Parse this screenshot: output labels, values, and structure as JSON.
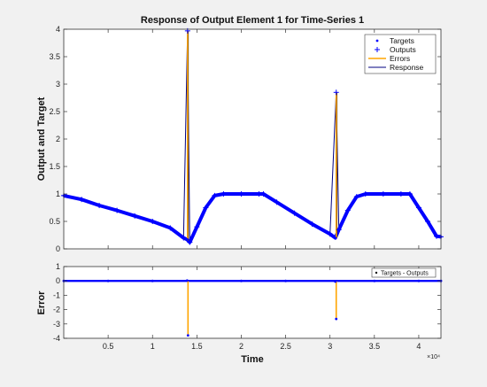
{
  "chart_data": [
    {
      "type": "line",
      "title": "Response of Output Element 1 for Time-Series 1",
      "xlabel": "",
      "ylabel": "Output and Target",
      "xlim": [
        0,
        42500
      ],
      "ylim": [
        0,
        4
      ],
      "yticks": [
        0,
        0.5,
        1,
        1.5,
        2,
        2.5,
        3,
        3.5,
        4
      ],
      "ytick_labels": [
        "0",
        "0.5",
        "1",
        "1.5",
        "2",
        "2.5",
        "3",
        "3.5",
        "4"
      ],
      "grid": false,
      "legend": {
        "placement": "top-right",
        "entries": [
          {
            "label": "Targets",
            "marker": "dot",
            "color": "#0000ff"
          },
          {
            "label": "Outputs",
            "marker": "plus",
            "color": "#0000ff"
          },
          {
            "label": "Errors",
            "marker": "line",
            "color": "#ffa500"
          },
          {
            "label": "Response",
            "marker": "line",
            "color": "#000080"
          }
        ]
      },
      "series": [
        {
          "name": "Targets",
          "color": "#0000ff",
          "x": [
            0,
            2000,
            4000,
            6000,
            8000,
            10000,
            12000,
            13500,
            13900,
            14200,
            15000,
            16000,
            17000,
            18000,
            20000,
            22000,
            22500,
            24000,
            26000,
            28000,
            30000,
            30600,
            31000,
            32000,
            33000,
            34000,
            36000,
            38000,
            39000,
            40000,
            41000,
            42000,
            42500
          ],
          "values": [
            0.97,
            0.9,
            0.79,
            0.7,
            0.6,
            0.5,
            0.38,
            0.2,
            0.17,
            0.12,
            0.4,
            0.75,
            0.97,
            1.0,
            1.0,
            1.0,
            1.0,
            0.85,
            0.65,
            0.45,
            0.27,
            0.2,
            0.35,
            0.7,
            0.95,
            1.0,
            1.0,
            1.0,
            1.0,
            0.75,
            0.5,
            0.23,
            0.22
          ]
        },
        {
          "name": "Outputs",
          "color": "#0000ff",
          "x": [
            0,
            2000,
            4000,
            6000,
            8000,
            10000,
            12000,
            13500,
            13950,
            14200,
            15000,
            16000,
            17000,
            18000,
            20000,
            22000,
            22500,
            24000,
            26000,
            28000,
            30000,
            30700,
            31000,
            32000,
            33000,
            34000,
            36000,
            38000,
            39000,
            40000,
            41000,
            42000,
            42500
          ],
          "values": [
            0.97,
            0.9,
            0.79,
            0.7,
            0.6,
            0.5,
            0.38,
            0.2,
            3.97,
            0.12,
            0.4,
            0.75,
            0.97,
            1.0,
            1.0,
            1.0,
            1.0,
            0.85,
            0.65,
            0.45,
            0.27,
            2.85,
            0.35,
            0.7,
            0.95,
            1.0,
            1.0,
            1.0,
            1.0,
            0.75,
            0.5,
            0.23,
            0.22
          ]
        },
        {
          "name": "Errors",
          "color": "#ffa500",
          "segments": [
            {
              "x": 13950,
              "y_from": 0.15,
              "y_to": 3.97
            },
            {
              "x": 30700,
              "y_from": 0.2,
              "y_to": 2.85
            }
          ]
        }
      ]
    },
    {
      "type": "line",
      "title": "",
      "xlabel": "Time",
      "ylabel": "Error",
      "x_exponent_label": "×10⁴",
      "xlim": [
        0,
        42500
      ],
      "ylim": [
        -4,
        1
      ],
      "xticks": [
        5000,
        10000,
        15000,
        20000,
        25000,
        30000,
        35000,
        40000
      ],
      "xtick_labels": [
        "0.5",
        "1",
        "1.5",
        "2",
        "2.5",
        "3",
        "3.5",
        "4"
      ],
      "yticks": [
        -4,
        -3,
        -2,
        -1,
        0,
        1
      ],
      "ytick_labels": [
        "-4",
        "-3",
        "-2",
        "-1",
        "0",
        "1"
      ],
      "grid": false,
      "legend": {
        "placement": "top-right",
        "entries": [
          {
            "label": "Targets - Outputs",
            "marker": "dot",
            "color": "#0000ff"
          }
        ]
      },
      "series": [
        {
          "name": "Targets - Outputs",
          "color": "#0000ff",
          "x": [
            0,
            5000,
            10000,
            13900,
            14000,
            20000,
            25000,
            30600,
            30700,
            35000,
            40000,
            42500
          ],
          "values": [
            0,
            0,
            0,
            0.03,
            -3.8,
            0,
            0,
            -0.05,
            -2.65,
            0,
            0,
            0
          ]
        },
        {
          "name": "Errors",
          "color": "#ffa500",
          "segments": [
            {
              "x": 14000,
              "y_from": 0,
              "y_to": -3.8
            },
            {
              "x": 30700,
              "y_from": 0,
              "y_to": -2.65
            }
          ]
        }
      ]
    }
  ]
}
